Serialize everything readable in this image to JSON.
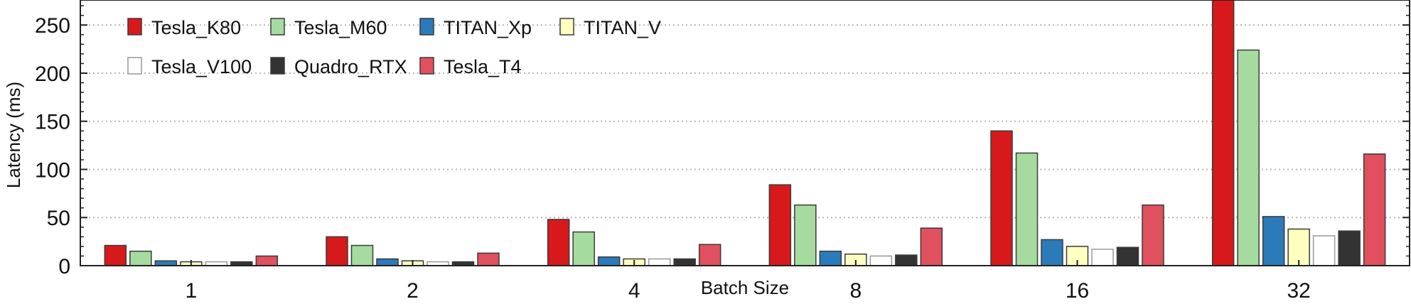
{
  "chart_data": {
    "type": "bar",
    "xlabel": "Batch Size",
    "ylabel": "Latency (ms)",
    "ylim": [
      0,
      276
    ],
    "yticks": [
      0,
      50,
      100,
      150,
      200,
      250
    ],
    "grid": "horizontal dotted",
    "legend_position": "top-left",
    "categories": [
      "1",
      "2",
      "4",
      "8",
      "16",
      "32"
    ],
    "series": [
      {
        "name": "Tesla_K80",
        "color": "#d7191c",
        "values": [
          21,
          30,
          48,
          84,
          140,
          276
        ]
      },
      {
        "name": "Tesla_M60",
        "color": "#a6dba0",
        "values": [
          15,
          21,
          35,
          63,
          117,
          224
        ]
      },
      {
        "name": "TITAN_Xp",
        "color": "#2b7bba",
        "values": [
          5,
          7,
          9,
          15,
          27,
          51
        ]
      },
      {
        "name": "TITAN_V",
        "color": "#ffffbf",
        "values": [
          4,
          5,
          7,
          12,
          20,
          38
        ]
      },
      {
        "name": "Tesla_V100",
        "color": "#ffffff",
        "values": [
          4,
          4,
          7,
          10,
          17,
          31
        ]
      },
      {
        "name": "Quadro_RTX",
        "color": "#333333",
        "values": [
          4,
          4,
          7,
          11,
          19,
          36
        ]
      },
      {
        "name": "Tesla_T4",
        "color": "#e0505e",
        "values": [
          10,
          13,
          22,
          39,
          63,
          116
        ]
      }
    ]
  }
}
